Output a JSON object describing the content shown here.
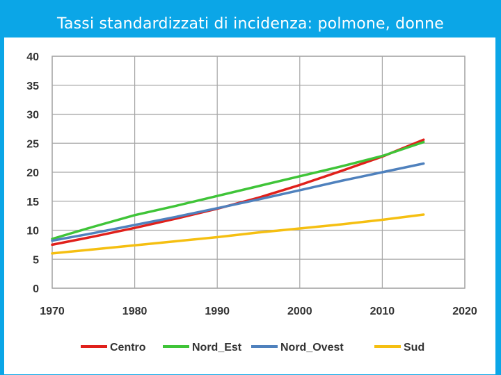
{
  "header": {
    "title": "Tassi standardizzati di incidenza: polmone, donne"
  },
  "colors": {
    "background": "#0ba6e7",
    "panel": "#ffffff",
    "grid": "#a6a6a6"
  },
  "chart_data": {
    "type": "line",
    "title": "Tassi standardizzati di incidenza: polmone, donne",
    "xlabel": "",
    "ylabel": "",
    "xlim": [
      1970,
      2020
    ],
    "ylim": [
      0,
      40
    ],
    "x_ticks": [
      "1970",
      "1980",
      "1990",
      "2000",
      "2010",
      "2020"
    ],
    "y_ticks": [
      "0",
      "5",
      "10",
      "15",
      "20",
      "25",
      "30",
      "35",
      "40"
    ],
    "grid": true,
    "legend_position": "bottom",
    "x": [
      1970,
      1975,
      1980,
      1985,
      1990,
      1995,
      2000,
      2005,
      2010,
      2015
    ],
    "series": [
      {
        "name": "Centro",
        "color": "#e0201b",
        "values": [
          7.5,
          8.9,
          10.4,
          12.0,
          13.7,
          15.6,
          17.8,
          20.2,
          22.7,
          25.6
        ]
      },
      {
        "name": "Nord_Est",
        "color": "#3fc438",
        "values": [
          8.5,
          10.6,
          12.6,
          14.2,
          15.9,
          17.6,
          19.3,
          21.0,
          22.8,
          25.2
        ]
      },
      {
        "name": "Nord_Ovest",
        "color": "#4f81bd",
        "values": [
          8.2,
          9.5,
          10.9,
          12.3,
          13.8,
          15.3,
          16.9,
          18.5,
          20.0,
          21.5
        ]
      },
      {
        "name": "Sud",
        "color": "#f5bf11",
        "values": [
          6.0,
          6.7,
          7.4,
          8.1,
          8.8,
          9.6,
          10.3,
          11.0,
          11.8,
          12.7
        ]
      }
    ]
  }
}
